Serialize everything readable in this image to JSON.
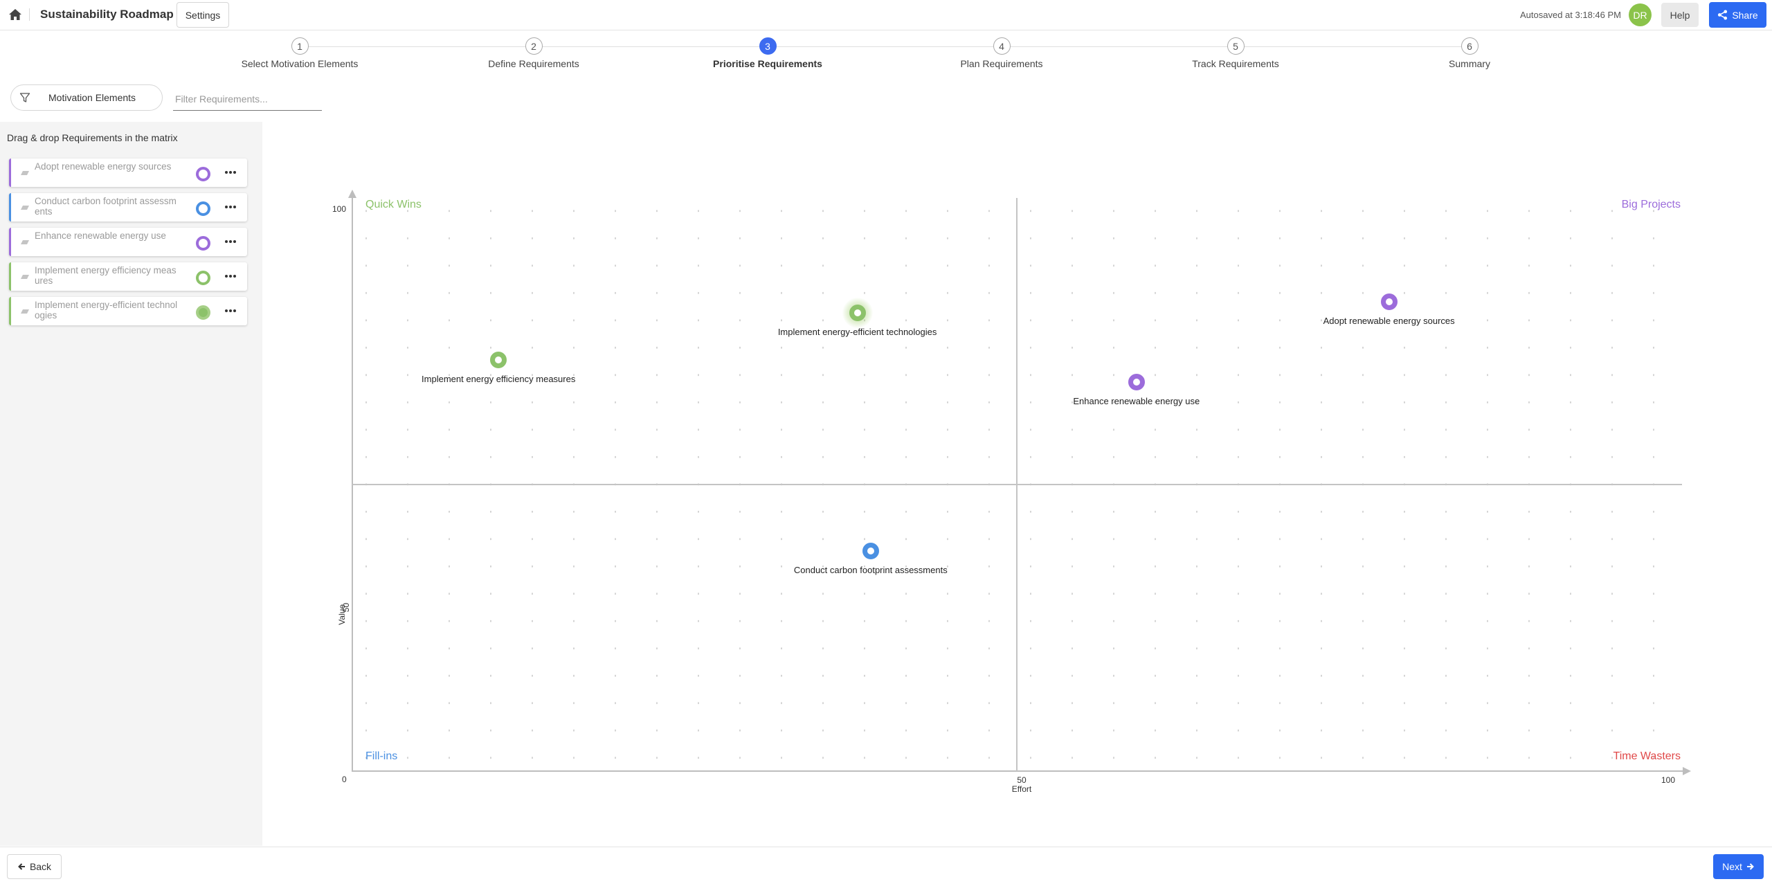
{
  "header": {
    "title": "Sustainability Roadmap",
    "settings_label": "Settings",
    "autosave_text": "Autosaved at 3:18:46 PM",
    "avatar_initials": "DR",
    "help_label": "Help",
    "share_label": "Share"
  },
  "steps": [
    {
      "number": "1",
      "label": "Select Motivation Elements"
    },
    {
      "number": "2",
      "label": "Define Requirements"
    },
    {
      "number": "3",
      "label": "Prioritise Requirements",
      "active": true
    },
    {
      "number": "4",
      "label": "Plan Requirements"
    },
    {
      "number": "5",
      "label": "Track Requirements"
    },
    {
      "number": "6",
      "label": "Summary"
    }
  ],
  "filter": {
    "motivation_label": "Motivation Elements",
    "search_placeholder": "Filter Requirements..."
  },
  "sidebar": {
    "title": "Drag & drop Requirements in the matrix",
    "items": [
      {
        "label": "Adopt renewable energy sources",
        "color": "#9c6cdb"
      },
      {
        "label": "Conduct carbon footprint assessments",
        "color": "#4a90e2"
      },
      {
        "label": "Enhance renewable energy use",
        "color": "#9c6cdb"
      },
      {
        "label": "Implement energy efficiency measures",
        "color": "#8cc26a"
      },
      {
        "label": "Implement energy-efficient technologies",
        "color": "#8cc26a",
        "filled": true
      }
    ]
  },
  "matrix": {
    "quadrants": {
      "top_left": {
        "label": "Quick Wins",
        "color": "#8cc26a"
      },
      "top_right": {
        "label": "Big Projects",
        "color": "#9c6cdb"
      },
      "bottom_left": {
        "label": "Fill-ins",
        "color": "#4a90e2"
      },
      "bottom_right": {
        "label": "Time Wasters",
        "color": "#e04848"
      }
    },
    "x_ticks": [
      "0",
      "50",
      "100"
    ],
    "y_ticks": [
      "100",
      "50"
    ],
    "x_label": "Effort",
    "y_label": "Value",
    "points": [
      {
        "label": "Implement energy-efficient technologies",
        "effort": 38,
        "value": 81,
        "color": "#8cc26a",
        "highlight": true
      },
      {
        "label": "Implement energy efficiency measures",
        "effort": 11,
        "value": 72.5,
        "color": "#8cc26a"
      },
      {
        "label": "Adopt renewable energy sources",
        "effort": 78,
        "value": 83,
        "color": "#9c6cdb"
      },
      {
        "label": "Enhance renewable energy use",
        "effort": 59,
        "value": 68.5,
        "color": "#9c6cdb"
      },
      {
        "label": "Conduct carbon footprint assessments",
        "effort": 39,
        "value": 38,
        "color": "#4a90e2"
      }
    ]
  },
  "footer": {
    "back_label": "Back",
    "next_label": "Next"
  }
}
